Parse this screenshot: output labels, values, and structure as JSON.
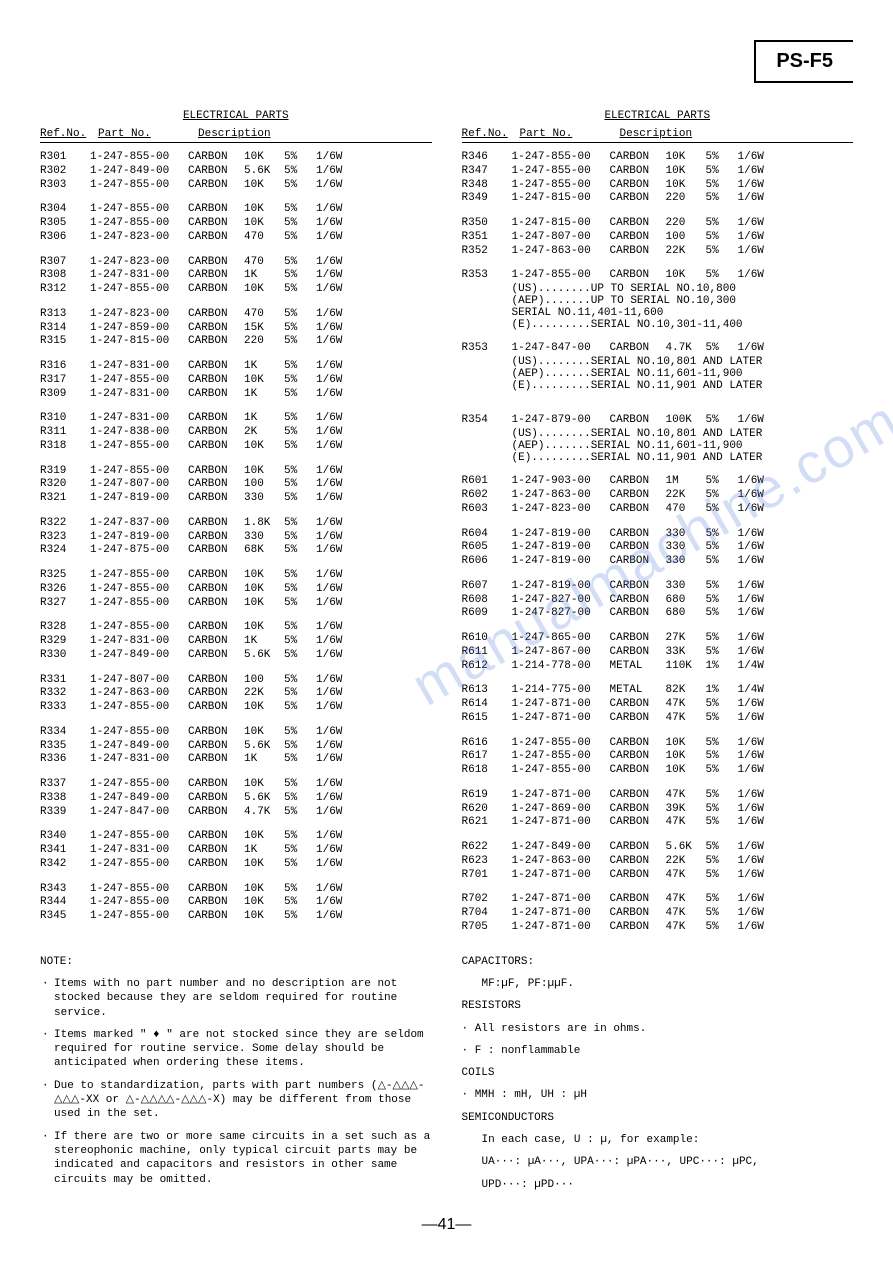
{
  "model": "PS-F5",
  "section_title": "ELECTRICAL PARTS",
  "headers": {
    "ref": "Ref.No.",
    "part": "Part No.",
    "desc": "Description"
  },
  "left": [
    {
      "r": "R301",
      "p": "1-247-855-00",
      "d": "CARBON",
      "v": "10K",
      "t": "5%",
      "w": "1/6W"
    },
    {
      "r": "R302",
      "p": "1-247-849-00",
      "d": "CARBON",
      "v": "5.6K",
      "t": "5%",
      "w": "1/6W"
    },
    {
      "r": "R303",
      "p": "1-247-855-00",
      "d": "CARBON",
      "v": "10K",
      "t": "5%",
      "w": "1/6W"
    },
    null,
    {
      "r": "R304",
      "p": "1-247-855-00",
      "d": "CARBON",
      "v": "10K",
      "t": "5%",
      "w": "1/6W"
    },
    {
      "r": "R305",
      "p": "1-247-855-00",
      "d": "CARBON",
      "v": "10K",
      "t": "5%",
      "w": "1/6W"
    },
    {
      "r": "R306",
      "p": "1-247-823-00",
      "d": "CARBON",
      "v": "470",
      "t": "5%",
      "w": "1/6W"
    },
    null,
    {
      "r": "R307",
      "p": "1-247-823-00",
      "d": "CARBON",
      "v": "470",
      "t": "5%",
      "w": "1/6W"
    },
    {
      "r": "R308",
      "p": "1-247-831-00",
      "d": "CARBON",
      "v": "1K",
      "t": "5%",
      "w": "1/6W"
    },
    {
      "r": "R312",
      "p": "1-247-855-00",
      "d": "CARBON",
      "v": "10K",
      "t": "5%",
      "w": "1/6W"
    },
    null,
    {
      "r": "R313",
      "p": "1-247-823-00",
      "d": "CARBON",
      "v": "470",
      "t": "5%",
      "w": "1/6W"
    },
    {
      "r": "R314",
      "p": "1-247-859-00",
      "d": "CARBON",
      "v": "15K",
      "t": "5%",
      "w": "1/6W"
    },
    {
      "r": "R315",
      "p": "1-247-815-00",
      "d": "CARBON",
      "v": "220",
      "t": "5%",
      "w": "1/6W"
    },
    null,
    {
      "r": "R316",
      "p": "1-247-831-00",
      "d": "CARBON",
      "v": "1K",
      "t": "5%",
      "w": "1/6W"
    },
    {
      "r": "R317",
      "p": "1-247-855-00",
      "d": "CARBON",
      "v": "10K",
      "t": "5%",
      "w": "1/6W"
    },
    {
      "r": "R309",
      "p": "1-247-831-00",
      "d": "CARBON",
      "v": "1K",
      "t": "5%",
      "w": "1/6W"
    },
    null,
    {
      "r": "R310",
      "p": "1-247-831-00",
      "d": "CARBON",
      "v": "1K",
      "t": "5%",
      "w": "1/6W"
    },
    {
      "r": "R311",
      "p": "1-247-838-00",
      "d": "CARBON",
      "v": "2K",
      "t": "5%",
      "w": "1/6W"
    },
    {
      "r": "R318",
      "p": "1-247-855-00",
      "d": "CARBON",
      "v": "10K",
      "t": "5%",
      "w": "1/6W"
    },
    null,
    {
      "r": "R319",
      "p": "1-247-855-00",
      "d": "CARBON",
      "v": "10K",
      "t": "5%",
      "w": "1/6W"
    },
    {
      "r": "R320",
      "p": "1-247-807-00",
      "d": "CARBON",
      "v": "100",
      "t": "5%",
      "w": "1/6W"
    },
    {
      "r": "R321",
      "p": "1-247-819-00",
      "d": "CARBON",
      "v": "330",
      "t": "5%",
      "w": "1/6W"
    },
    null,
    {
      "r": "R322",
      "p": "1-247-837-00",
      "d": "CARBON",
      "v": "1.8K",
      "t": "5%",
      "w": "1/6W"
    },
    {
      "r": "R323",
      "p": "1-247-819-00",
      "d": "CARBON",
      "v": "330",
      "t": "5%",
      "w": "1/6W"
    },
    {
      "r": "R324",
      "p": "1-247-875-00",
      "d": "CARBON",
      "v": "68K",
      "t": "5%",
      "w": "1/6W"
    },
    null,
    {
      "r": "R325",
      "p": "1-247-855-00",
      "d": "CARBON",
      "v": "10K",
      "t": "5%",
      "w": "1/6W"
    },
    {
      "r": "R326",
      "p": "1-247-855-00",
      "d": "CARBON",
      "v": "10K",
      "t": "5%",
      "w": "1/6W"
    },
    {
      "r": "R327",
      "p": "1-247-855-00",
      "d": "CARBON",
      "v": "10K",
      "t": "5%",
      "w": "1/6W"
    },
    null,
    {
      "r": "R328",
      "p": "1-247-855-00",
      "d": "CARBON",
      "v": "10K",
      "t": "5%",
      "w": "1/6W"
    },
    {
      "r": "R329",
      "p": "1-247-831-00",
      "d": "CARBON",
      "v": "1K",
      "t": "5%",
      "w": "1/6W"
    },
    {
      "r": "R330",
      "p": "1-247-849-00",
      "d": "CARBON",
      "v": "5.6K",
      "t": "5%",
      "w": "1/6W"
    },
    null,
    {
      "r": "R331",
      "p": "1-247-807-00",
      "d": "CARBON",
      "v": "100",
      "t": "5%",
      "w": "1/6W"
    },
    {
      "r": "R332",
      "p": "1-247-863-00",
      "d": "CARBON",
      "v": "22K",
      "t": "5%",
      "w": "1/6W"
    },
    {
      "r": "R333",
      "p": "1-247-855-00",
      "d": "CARBON",
      "v": "10K",
      "t": "5%",
      "w": "1/6W"
    },
    null,
    {
      "r": "R334",
      "p": "1-247-855-00",
      "d": "CARBON",
      "v": "10K",
      "t": "5%",
      "w": "1/6W"
    },
    {
      "r": "R335",
      "p": "1-247-849-00",
      "d": "CARBON",
      "v": "5.6K",
      "t": "5%",
      "w": "1/6W"
    },
    {
      "r": "R336",
      "p": "1-247-831-00",
      "d": "CARBON",
      "v": "1K",
      "t": "5%",
      "w": "1/6W"
    },
    null,
    {
      "r": "R337",
      "p": "1-247-855-00",
      "d": "CARBON",
      "v": "10K",
      "t": "5%",
      "w": "1/6W"
    },
    {
      "r": "R338",
      "p": "1-247-849-00",
      "d": "CARBON",
      "v": "5.6K",
      "t": "5%",
      "w": "1/6W"
    },
    {
      "r": "R339",
      "p": "1-247-847-00",
      "d": "CARBON",
      "v": "4.7K",
      "t": "5%",
      "w": "1/6W"
    },
    null,
    {
      "r": "R340",
      "p": "1-247-855-00",
      "d": "CARBON",
      "v": "10K",
      "t": "5%",
      "w": "1/6W"
    },
    {
      "r": "R341",
      "p": "1-247-831-00",
      "d": "CARBON",
      "v": "1K",
      "t": "5%",
      "w": "1/6W"
    },
    {
      "r": "R342",
      "p": "1-247-855-00",
      "d": "CARBON",
      "v": "10K",
      "t": "5%",
      "w": "1/6W"
    },
    null,
    {
      "r": "R343",
      "p": "1-247-855-00",
      "d": "CARBON",
      "v": "10K",
      "t": "5%",
      "w": "1/6W"
    },
    {
      "r": "R344",
      "p": "1-247-855-00",
      "d": "CARBON",
      "v": "10K",
      "t": "5%",
      "w": "1/6W"
    },
    {
      "r": "R345",
      "p": "1-247-855-00",
      "d": "CARBON",
      "v": "10K",
      "t": "5%",
      "w": "1/6W"
    }
  ],
  "right": [
    {
      "r": "R346",
      "p": "1-247-855-00",
      "d": "CARBON",
      "v": "10K",
      "t": "5%",
      "w": "1/6W"
    },
    {
      "r": "R347",
      "p": "1-247-855-00",
      "d": "CARBON",
      "v": "10K",
      "t": "5%",
      "w": "1/6W"
    },
    {
      "r": "R348",
      "p": "1-247-855-00",
      "d": "CARBON",
      "v": "10K",
      "t": "5%",
      "w": "1/6W"
    },
    {
      "r": "R349",
      "p": "1-247-815-00",
      "d": "CARBON",
      "v": "220",
      "t": "5%",
      "w": "1/6W"
    },
    null,
    {
      "r": "R350",
      "p": "1-247-815-00",
      "d": "CARBON",
      "v": "220",
      "t": "5%",
      "w": "1/6W"
    },
    {
      "r": "R351",
      "p": "1-247-807-00",
      "d": "CARBON",
      "v": "100",
      "t": "5%",
      "w": "1/6W"
    },
    {
      "r": "R352",
      "p": "1-247-863-00",
      "d": "CARBON",
      "v": "22K",
      "t": "5%",
      "w": "1/6W"
    },
    null,
    {
      "r": "R353",
      "p": "1-247-855-00",
      "d": "CARBON",
      "v": "10K",
      "t": "5%",
      "w": "1/6W"
    }
  ],
  "r353_notes": [
    "(US)........UP TO SERIAL NO.10,800",
    "(AEP).......UP TO SERIAL NO.10,300",
    "            SERIAL NO.11,401-11,600",
    "(E).........SERIAL NO.10,301-11,400"
  ],
  "r353b": {
    "r": "R353",
    "p": "1-247-847-00",
    "d": "CARBON",
    "v": "4.7K",
    "t": "5%",
    "w": "1/6W"
  },
  "r353b_notes": [
    "(US)........SERIAL NO.10,801 AND LATER",
    "(AEP).......SERIAL NO.11,601-11,900",
    "(E).........SERIAL NO.11,901 AND LATER"
  ],
  "r354": {
    "r": "R354",
    "p": "1-247-879-00",
    "d": "CARBON",
    "v": "100K",
    "t": "5%",
    "w": "1/6W"
  },
  "r354_notes": [
    "(US)........SERIAL NO.10,801 AND LATER",
    "(AEP).......SERIAL NO.11,601-11,900",
    "(E).........SERIAL NO.11,901 AND LATER"
  ],
  "right2": [
    {
      "r": "R601",
      "p": "1-247-903-00",
      "d": "CARBON",
      "v": "1M",
      "t": "5%",
      "w": "1/6W"
    },
    {
      "r": "R602",
      "p": "1-247-863-00",
      "d": "CARBON",
      "v": "22K",
      "t": "5%",
      "w": "1/6W"
    },
    {
      "r": "R603",
      "p": "1-247-823-00",
      "d": "CARBON",
      "v": "470",
      "t": "5%",
      "w": "1/6W"
    },
    null,
    {
      "r": "R604",
      "p": "1-247-819-00",
      "d": "CARBON",
      "v": "330",
      "t": "5%",
      "w": "1/6W"
    },
    {
      "r": "R605",
      "p": "1-247-819-00",
      "d": "CARBON",
      "v": "330",
      "t": "5%",
      "w": "1/6W"
    },
    {
      "r": "R606",
      "p": "1-247-819-00",
      "d": "CARBON",
      "v": "330",
      "t": "5%",
      "w": "1/6W"
    },
    null,
    {
      "r": "R607",
      "p": "1-247-819-00",
      "d": "CARBON",
      "v": "330",
      "t": "5%",
      "w": "1/6W"
    },
    {
      "r": "R608",
      "p": "1-247-827-00",
      "d": "CARBON",
      "v": "680",
      "t": "5%",
      "w": "1/6W"
    },
    {
      "r": "R609",
      "p": "1-247-827-00",
      "d": "CARBON",
      "v": "680",
      "t": "5%",
      "w": "1/6W"
    },
    null,
    {
      "r": "R610",
      "p": "1-247-865-00",
      "d": "CARBON",
      "v": "27K",
      "t": "5%",
      "w": "1/6W"
    },
    {
      "r": "R611",
      "p": "1-247-867-00",
      "d": "CARBON",
      "v": "33K",
      "t": "5%",
      "w": "1/6W"
    },
    {
      "r": "R612",
      "p": "1-214-778-00",
      "d": "METAL",
      "v": "110K",
      "t": "1%",
      "w": "1/4W"
    },
    null,
    {
      "r": "R613",
      "p": "1-214-775-00",
      "d": "METAL",
      "v": "82K",
      "t": "1%",
      "w": "1/4W"
    },
    {
      "r": "R614",
      "p": "1-247-871-00",
      "d": "CARBON",
      "v": "47K",
      "t": "5%",
      "w": "1/6W"
    },
    {
      "r": "R615",
      "p": "1-247-871-00",
      "d": "CARBON",
      "v": "47K",
      "t": "5%",
      "w": "1/6W"
    },
    null,
    {
      "r": "R616",
      "p": "1-247-855-00",
      "d": "CARBON",
      "v": "10K",
      "t": "5%",
      "w": "1/6W"
    },
    {
      "r": "R617",
      "p": "1-247-855-00",
      "d": "CARBON",
      "v": "10K",
      "t": "5%",
      "w": "1/6W"
    },
    {
      "r": "R618",
      "p": "1-247-855-00",
      "d": "CARBON",
      "v": "10K",
      "t": "5%",
      "w": "1/6W"
    },
    null,
    {
      "r": "R619",
      "p": "1-247-871-00",
      "d": "CARBON",
      "v": "47K",
      "t": "5%",
      "w": "1/6W"
    },
    {
      "r": "R620",
      "p": "1-247-869-00",
      "d": "CARBON",
      "v": "39K",
      "t": "5%",
      "w": "1/6W"
    },
    {
      "r": "R621",
      "p": "1-247-871-00",
      "d": "CARBON",
      "v": "47K",
      "t": "5%",
      "w": "1/6W"
    },
    null,
    {
      "r": "R622",
      "p": "1-247-849-00",
      "d": "CARBON",
      "v": "5.6K",
      "t": "5%",
      "w": "1/6W"
    },
    {
      "r": "R623",
      "p": "1-247-863-00",
      "d": "CARBON",
      "v": "22K",
      "t": "5%",
      "w": "1/6W"
    },
    {
      "r": "R701",
      "p": "1-247-871-00",
      "d": "CARBON",
      "v": "47K",
      "t": "5%",
      "w": "1/6W"
    },
    null,
    {
      "r": "R702",
      "p": "1-247-871-00",
      "d": "CARBON",
      "v": "47K",
      "t": "5%",
      "w": "1/6W"
    },
    {
      "r": "R704",
      "p": "1-247-871-00",
      "d": "CARBON",
      "v": "47K",
      "t": "5%",
      "w": "1/6W"
    },
    {
      "r": "R705",
      "p": "1-247-871-00",
      "d": "CARBON",
      "v": "47K",
      "t": "5%",
      "w": "1/6W"
    }
  ],
  "notes_title": "NOTE:",
  "notes": [
    "Items with no part number and no description are not stocked because they are seldom required for routine service.",
    "Items marked \" ♦ \" are not stocked since they are seldom required for routine service. Some delay should be anticipated when ordering these items.",
    "Due to standardization, parts with part numbers (△-△△△-△△△-XX or △-△△△△-△△△-X) may be different from those used in the set.",
    "If there are two or more same circuits in a set such as a stereophonic machine, only typical circuit parts may be indicated and capacitors and resistors in other same circuits may be omitted."
  ],
  "defs": {
    "cap_title": "CAPACITORS:",
    "cap_txt": "MF:µF, PF:µµF.",
    "res_title": "RESISTORS",
    "res_txt1": "· All resistors are in ohms.",
    "res_txt2": "· F : nonflammable",
    "coil_title": "COILS",
    "coil_txt": "· MMH : mH, UH : µH",
    "semi_title": "SEMICONDUCTORS",
    "semi_txt1": "In each case, U : µ, for example:",
    "semi_txt2": "UA···: µA···, UPA···: µPA···, UPC···: µPC,",
    "semi_txt3": "UPD···: µPD···"
  },
  "page": "—41—"
}
